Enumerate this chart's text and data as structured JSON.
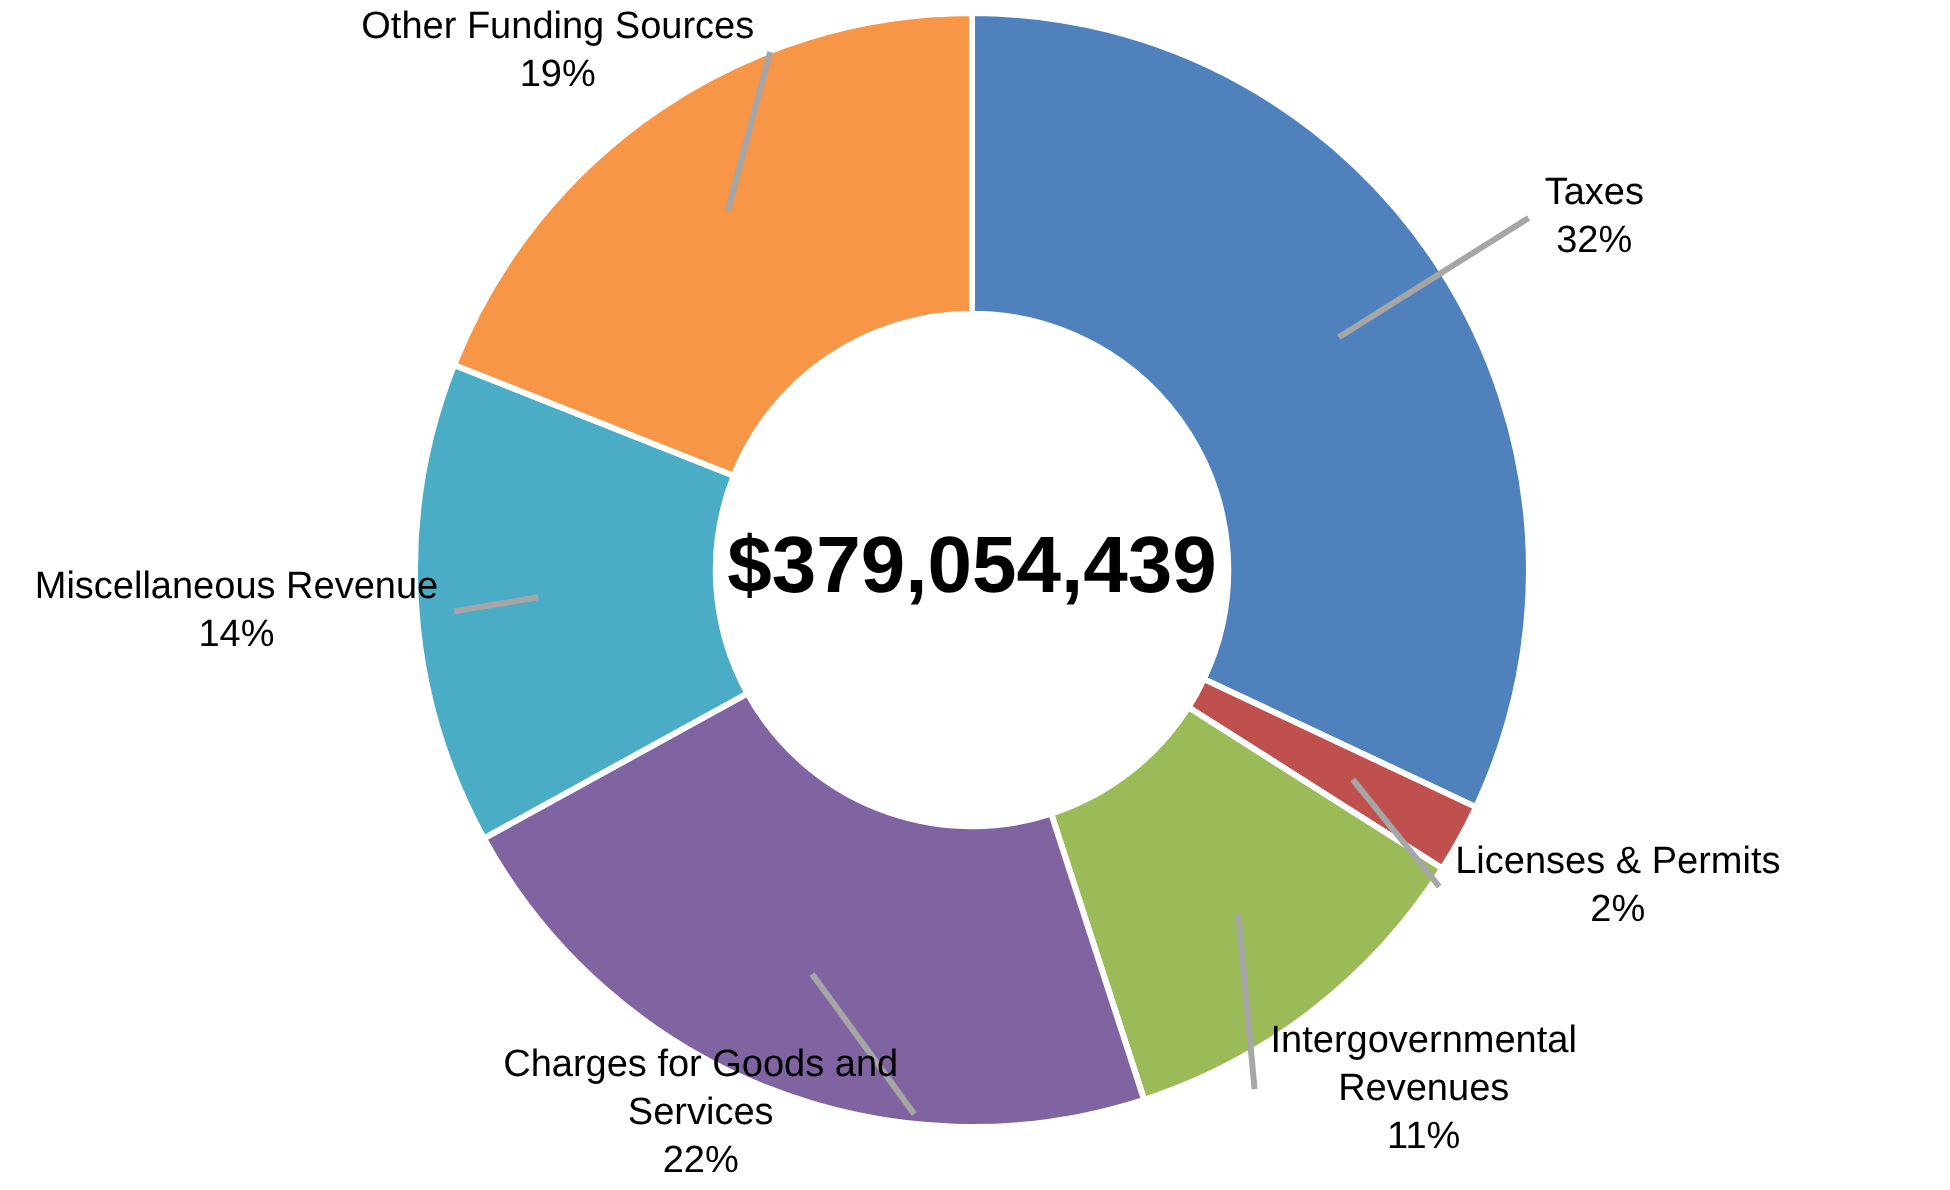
{
  "chart_data": {
    "type": "donut",
    "categories": [
      "Taxes",
      "Licenses & Permits",
      "Intergovernmental Revenues",
      "Charges for Goods and Services",
      "Miscellaneous Revenue",
      "Other Funding Sources"
    ],
    "values": [
      32,
      2,
      11,
      22,
      14,
      19
    ],
    "colors": [
      "#4f81bd",
      "#c0504d",
      "#9bbb59",
      "#8064a2",
      "#4bacc6",
      "#f79646"
    ],
    "annotations": [
      "$379,054,439"
    ],
    "value_labels": [
      "32%",
      "2%",
      "11%",
      "22%",
      "14%",
      "19%"
    ],
    "legend": false
  }
}
